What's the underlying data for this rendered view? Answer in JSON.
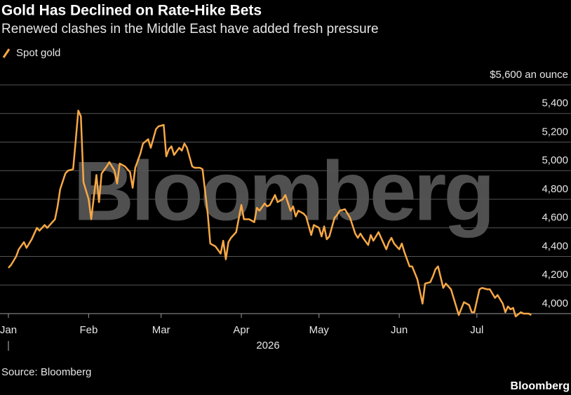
{
  "chart_data": {
    "type": "line",
    "title": "Gold Has Declined on Rate-Hike Bets",
    "subtitle": "Renewed clashes in the Middle East have added fresh pressure",
    "x_label": "2026",
    "source": "Source: Bloomberg",
    "brand": "Bloomberg",
    "watermark": "Bloomberg",
    "grid": true,
    "legend": "top-left",
    "x": [
      0,
      1,
      3,
      4,
      6,
      7,
      9,
      11,
      12,
      14,
      15,
      16,
      18,
      19,
      20,
      22,
      23,
      25,
      26,
      27,
      28,
      29,
      31,
      32,
      34,
      35,
      36,
      38,
      39,
      41,
      42,
      43,
      45,
      47,
      48,
      49,
      51,
      52,
      54,
      55,
      57,
      58,
      60,
      61,
      62,
      63,
      64,
      66,
      67,
      68,
      69,
      71,
      72,
      74,
      75,
      77,
      78,
      80,
      82,
      83,
      84,
      85,
      86,
      88,
      90,
      91,
      93,
      95,
      96,
      97,
      99,
      100,
      101,
      103,
      104,
      106,
      107,
      109,
      110,
      111,
      112,
      114,
      115,
      117,
      118,
      120,
      121,
      122,
      123,
      124,
      126,
      127,
      128,
      130,
      131,
      132,
      134,
      135,
      136,
      137,
      139,
      140,
      141,
      143,
      144,
      146,
      147,
      148,
      149,
      151,
      152,
      153,
      155,
      156,
      158,
      160,
      161,
      163,
      164,
      165,
      166,
      168,
      169,
      171,
      172,
      174,
      176,
      178,
      179,
      180,
      182,
      183,
      185,
      186,
      188,
      189,
      191,
      192,
      193,
      194,
      195,
      196,
      198,
      199,
      201,
      202
    ],
    "series": [
      {
        "name": "Spot gold",
        "color": "#f7a845",
        "values": [
          4320,
          4340,
          4400,
          4450,
          4500,
          4460,
          4520,
          4600,
          4580,
          4620,
          4600,
          4620,
          4660,
          4750,
          4870,
          4980,
          5000,
          5010,
          5210,
          5420,
          5380,
          4920,
          4800,
          4660,
          4970,
          4780,
          4980,
          5030,
          5060,
          5000,
          4910,
          5050,
          5030,
          4990,
          4880,
          5020,
          5120,
          5190,
          5220,
          5160,
          5290,
          5310,
          5320,
          5100,
          5150,
          5170,
          5110,
          5160,
          5140,
          5190,
          5160,
          5030,
          5020,
          5020,
          5010,
          4700,
          4490,
          4470,
          4420,
          4510,
          4380,
          4500,
          4530,
          4570,
          4760,
          4660,
          4660,
          4640,
          4740,
          4720,
          4770,
          4750,
          4760,
          4830,
          4780,
          4800,
          4830,
          4720,
          4750,
          4680,
          4720,
          4700,
          4680,
          4550,
          4620,
          4600,
          4540,
          4610,
          4520,
          4540,
          4670,
          4690,
          4720,
          4730,
          4700,
          4670,
          4560,
          4530,
          4560,
          4530,
          4480,
          4550,
          4510,
          4570,
          4530,
          4450,
          4500,
          4530,
          4490,
          4450,
          4490,
          4430,
          4330,
          4330,
          4240,
          4070,
          4210,
          4220,
          4260,
          4310,
          4330,
          4180,
          4210,
          4170,
          4110,
          3990,
          4080,
          4060,
          4010,
          4010,
          4170,
          4180,
          4170,
          4170,
          4110,
          4130,
          4070,
          4010,
          4050,
          4030,
          4040,
          3980,
          4010,
          4000,
          4000,
          3990
        ]
      }
    ],
    "xlim": [
      -1,
      203
    ],
    "xticks": [
      {
        "value": 0,
        "label": "Jan"
      },
      {
        "value": 31,
        "label": "Feb"
      },
      {
        "value": 59,
        "label": "Mar"
      },
      {
        "value": 90,
        "label": "Apr"
      },
      {
        "value": 120,
        "label": "May"
      },
      {
        "value": 151,
        "label": "Jun"
      },
      {
        "value": 181,
        "label": "Jul"
      }
    ],
    "ylim": [
      4000,
      5600
    ],
    "yticks": [
      {
        "value": 4000,
        "label": "4,000"
      },
      {
        "value": 4200,
        "label": "4,200"
      },
      {
        "value": 4400,
        "label": "4,400"
      },
      {
        "value": 4600,
        "label": "4,600"
      },
      {
        "value": 4800,
        "label": "4,800"
      },
      {
        "value": 5000,
        "label": "5,000"
      },
      {
        "value": 5200,
        "label": "5,200"
      },
      {
        "value": 5400,
        "label": "5,400"
      },
      {
        "value": 5600,
        "label": "$5,600 an ounce"
      }
    ]
  }
}
